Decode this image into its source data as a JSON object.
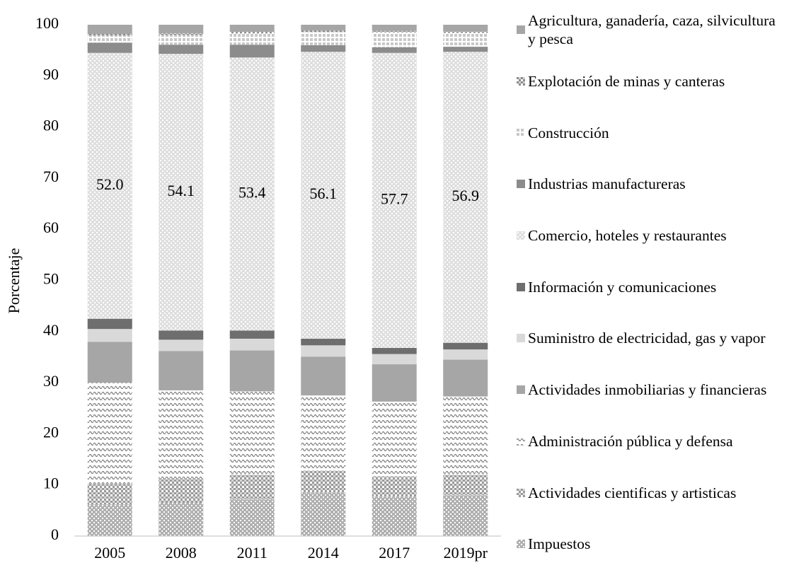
{
  "chart_data": {
    "type": "stacked_bar",
    "y_label": "Porcentaje",
    "categories": [
      "2005",
      "2008",
      "2011",
      "2014",
      "2017",
      "2019pr"
    ],
    "ylim": [
      0,
      100
    ],
    "yticks": [
      0,
      10,
      20,
      30,
      40,
      50,
      60,
      70,
      80,
      90,
      100
    ],
    "legend": "right",
    "series": [
      {
        "name": "Agricultura, ganadería, caza, silvicultura y pesca",
        "color": "#a6a6a6",
        "values": [
          1.8,
          1.7,
          1.4,
          1.1,
          1.2,
          1.3
        ]
      },
      {
        "name": "Explotación de minas y canteras",
        "color": "#8c8c8c",
        "values": [
          0.3,
          0.3,
          0.3,
          0.3,
          0.3,
          0.3
        ]
      },
      {
        "name": "Construcción",
        "color": "#c8c8c8",
        "values": [
          1.4,
          1.9,
          2.2,
          2.6,
          2.9,
          2.7
        ]
      },
      {
        "name": "Industrias manufactureras",
        "color": "#8c8c8c",
        "values": [
          2.0,
          1.8,
          2.5,
          1.3,
          1.1,
          1.0
        ]
      },
      {
        "name": "Comercio, hoteles y restaurantes",
        "color": "#c4c4c4",
        "values": [
          52.0,
          54.1,
          53.4,
          56.1,
          57.7,
          56.9
        ],
        "value_labels": [
          "52.0",
          "54.1",
          "53.4",
          "56.1",
          "57.7",
          "56.9"
        ]
      },
      {
        "name": "Información y comunicaciones",
        "color": "#6e6e6e",
        "values": [
          2.0,
          1.8,
          1.6,
          1.3,
          1.2,
          1.3
        ]
      },
      {
        "name": "Suministro de electricidad, gas y vapor",
        "color": "#d9d9d9",
        "values": [
          2.5,
          2.2,
          2.3,
          2.2,
          2.0,
          2.0
        ]
      },
      {
        "name": "Actividades inmobiliarias y financieras",
        "color": "#a6a6a6",
        "values": [
          8.0,
          7.7,
          8.0,
          7.6,
          7.3,
          7.2
        ]
      },
      {
        "name": "Administración pública y defensa",
        "color": "#7f7f7f",
        "values": [
          19.8,
          17.3,
          16.3,
          14.7,
          14.6,
          15.3
        ]
      },
      {
        "name": "Actividades cientificas y artisticas",
        "color": "#9a9a9a",
        "values": [
          4.0,
          4.7,
          4.8,
          4.3,
          4.0,
          4.0
        ]
      },
      {
        "name": "Impuestos",
        "color": "#b0b0b0",
        "values": [
          6.2,
          6.5,
          7.2,
          8.5,
          7.7,
          8.0
        ]
      }
    ]
  }
}
